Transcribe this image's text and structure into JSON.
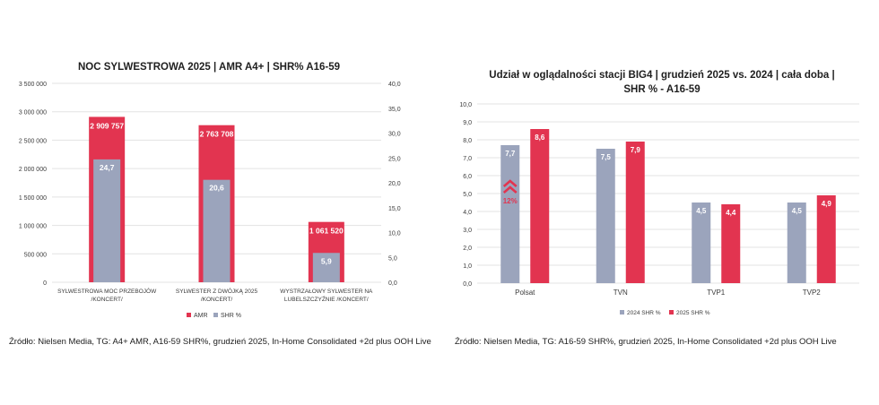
{
  "colors": {
    "amr": "#e23450",
    "shr": "#9ba4bc",
    "grid": "#e3e3e3",
    "bar_label": "#ffffff"
  },
  "chart_data": [
    {
      "type": "bar",
      "title": "NOC SYLWESTROWA 2025 | AMR A4+ | SHR% A16-59",
      "categories": [
        [
          "SYLWESTROWA MOC PRZEBOJÓW",
          "/KONCERT/"
        ],
        [
          "SYLWESTER Z DWÓJKĄ 2025",
          "/KONCERT/"
        ],
        [
          "WYSTRZAŁOWY SYLWESTER NA",
          "LUBELSZCZYŹNIE /KONCERT/"
        ]
      ],
      "series": [
        {
          "name": "AMR",
          "axis": "left",
          "values": [
            2909757,
            2763708,
            1061520
          ],
          "labels": [
            "2 909 757",
            "2 763 708",
            "1 061 520"
          ]
        },
        {
          "name": "SHR %",
          "axis": "right",
          "values": [
            24.7,
            20.6,
            5.9
          ],
          "labels": [
            "24,7",
            "20,6",
            "5,9"
          ]
        }
      ],
      "ylim_left": [
        0,
        3500000
      ],
      "ylim_right": [
        0,
        40
      ],
      "yticks_left": [
        "0",
        "500 000",
        "1 000 000",
        "1 500 000",
        "2 000 000",
        "2 500 000",
        "3 000 000",
        "3 500 000"
      ],
      "yticks_right": [
        "0,0",
        "5,0",
        "10,0",
        "15,0",
        "20,0",
        "25,0",
        "30,0",
        "35,0",
        "40,0"
      ],
      "legend": [
        "AMR",
        "SHR %"
      ],
      "legend_position": "bottom",
      "grid": true
    },
    {
      "type": "bar",
      "title_lines": [
        "Udział w oglądalności stacji BIG4 | grudzień 2025 vs. 2024 | cała doba |",
        "SHR % - A16-59"
      ],
      "categories": [
        "Polsat",
        "TVN",
        "TVP1",
        "TVP2"
      ],
      "series": [
        {
          "name": "2024 SHR %",
          "values": [
            7.7,
            7.5,
            4.5,
            4.5
          ],
          "labels": [
            "7,7",
            "7,5",
            "4,5",
            "4,5"
          ]
        },
        {
          "name": "2025 SHR %",
          "values": [
            8.6,
            7.9,
            4.4,
            4.9
          ],
          "labels": [
            "8,6",
            "7,9",
            "4,4",
            "4,9"
          ]
        }
      ],
      "ylim": [
        0,
        10
      ],
      "yticks": [
        "0,0",
        "1,0",
        "2,0",
        "3,0",
        "4,0",
        "5,0",
        "6,0",
        "7,0",
        "8,0",
        "9,0",
        "10,0"
      ],
      "annotation": {
        "category": "Polsat",
        "text": "12%"
      },
      "legend": [
        "2024 SHR %",
        "2025 SHR %"
      ],
      "legend_position": "bottom",
      "grid": true
    }
  ],
  "sources": {
    "left": "Źródło: Nielsen Media, TG: A4+ AMR, A16-59 SHR%, grudzień 2025, In-Home Consolidated +2d plus OOH Live",
    "right": "Źródło: Nielsen Media, TG: A16-59 SHR%, grudzień 2025, In-Home Consolidated +2d plus OOH Live"
  }
}
